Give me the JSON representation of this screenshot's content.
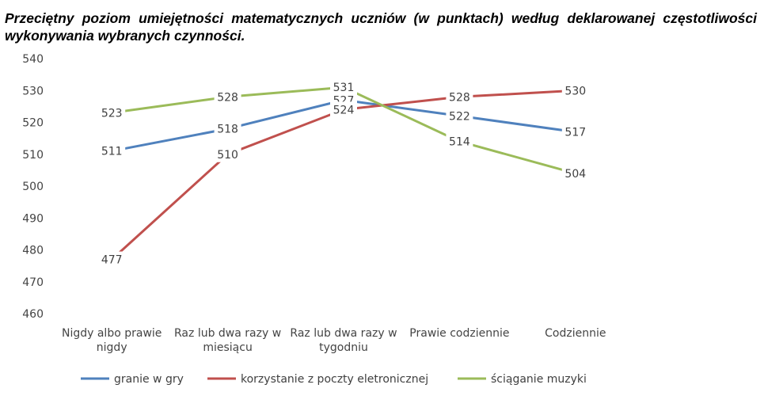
{
  "chart_data": {
    "type": "line",
    "title": "Przeciętny poziom umiejętności matematycznych uczniów (w punktach) według deklarowanej częstotliwości wykonywania wybranych czynności.",
    "xlabel": "",
    "ylabel": "",
    "ylim": [
      460,
      540
    ],
    "yticks": [
      460,
      470,
      480,
      490,
      500,
      510,
      520,
      530,
      540
    ],
    "grid": false,
    "legend": "bottom",
    "categories": [
      [
        "Nigdy albo prawie",
        "nigdy"
      ],
      [
        "Raz lub dwa razy w",
        "miesiącu"
      ],
      [
        "Raz lub dwa razy w",
        "tygodniu"
      ],
      [
        "Prawie codziennie"
      ],
      [
        "Codziennie"
      ]
    ],
    "series": [
      {
        "name": "granie w gry",
        "color": "#4f81bd",
        "values": [
          511,
          518,
          527,
          522,
          517
        ]
      },
      {
        "name": "korzystanie z poczty eletronicznej",
        "color": "#c0504d",
        "values": [
          477,
          510,
          524,
          528,
          530
        ]
      },
      {
        "name": "ściąganie muzyki",
        "color": "#9bbb59",
        "values": [
          523,
          528,
          531,
          514,
          504
        ]
      }
    ]
  }
}
